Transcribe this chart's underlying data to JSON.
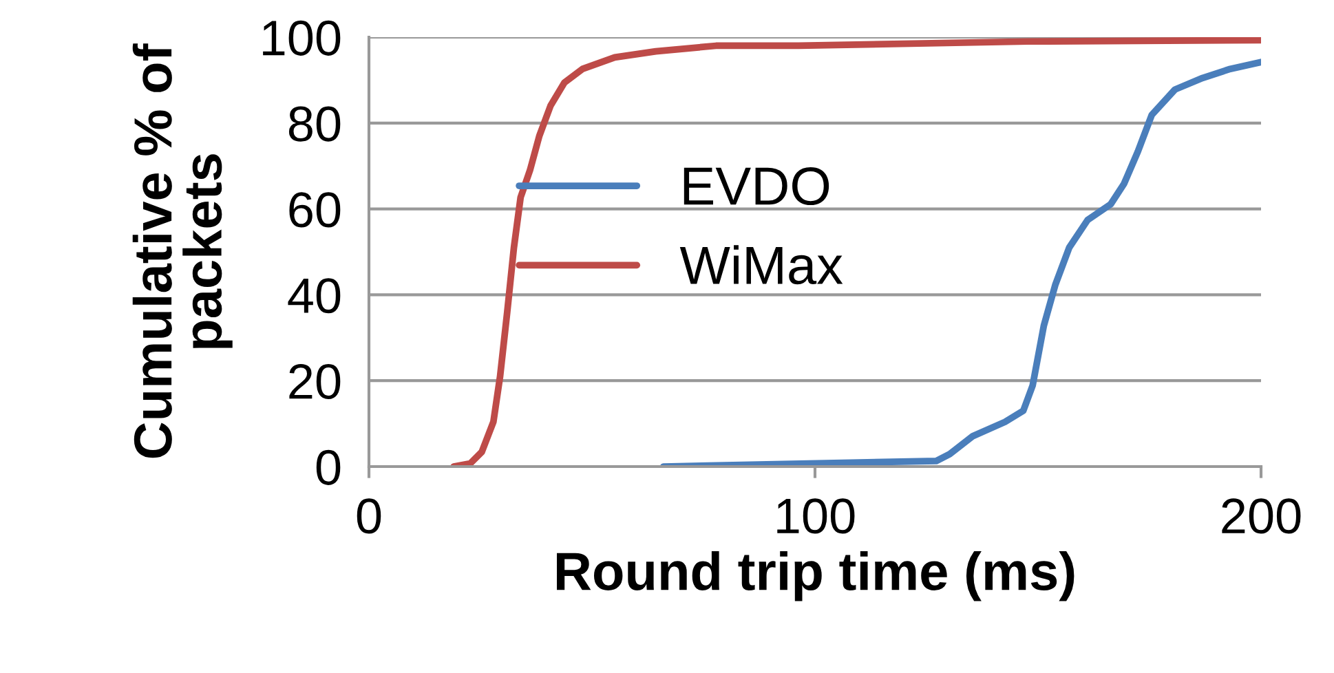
{
  "chart_data": {
    "type": "line",
    "xlabel": "Round trip time (ms)",
    "ylabel": "Cumulative % of\npackets",
    "xlim": [
      0,
      200
    ],
    "xticks": [
      0,
      100,
      200
    ],
    "ylim": [
      0,
      100
    ],
    "yticks": [
      0,
      20,
      40,
      60,
      80,
      100
    ],
    "grid": "y",
    "legend": "center",
    "marker": "none",
    "line_style": "solid",
    "series": [
      {
        "name": "EVDO",
        "color": "#4a7ebb",
        "x": [
          66,
          127.2,
          130.2,
          135.4,
          142.6,
          146.7,
          148.8,
          151.3,
          153.9,
          157,
          161.1,
          166.3,
          169.3,
          172.4,
          175.5,
          180.7,
          186.9,
          193.1,
          200
        ],
        "values": [
          0,
          1.3,
          2.9,
          7.1,
          10.4,
          13,
          18.9,
          32.8,
          42.4,
          51,
          57.4,
          61.1,
          65.9,
          73.4,
          81.9,
          87.8,
          90.5,
          92.6,
          94.2
        ]
      },
      {
        "name": "WiMax",
        "color": "#be4b48",
        "x": [
          19,
          22.7,
          25.3,
          27.9,
          29.4,
          31,
          32.5,
          34,
          36.1,
          38.2,
          40.7,
          43.8,
          47.9,
          55.1,
          64.3,
          77.8,
          96.3,
          147.7,
          200
        ],
        "values": [
          0,
          0.7,
          3.4,
          10.4,
          21,
          36,
          51,
          62.7,
          69,
          77,
          84,
          89.4,
          92.6,
          95.3,
          96.7,
          98,
          98,
          99,
          99.3
        ]
      }
    ]
  }
}
